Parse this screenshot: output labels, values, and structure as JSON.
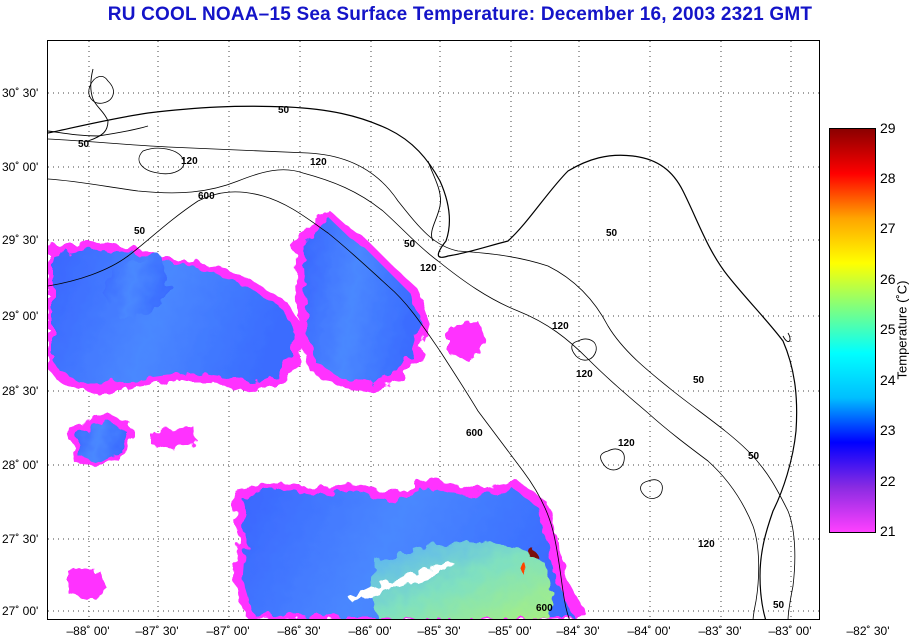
{
  "title": "RU COOL  NOAA–15  Sea Surface Temperature:  December 16, 2003 2321 GMT",
  "latitude_labels": [
    "30˚ 30'",
    "30˚ 00'",
    "29˚ 30'",
    "29˚ 00'",
    "28˚ 30'",
    "28˚ 00'",
    "27˚ 30'",
    "27˚ 00'"
  ],
  "longitude_labels": [
    "–88˚ 00'",
    "–87˚ 30'",
    "–87˚ 00'",
    "–86˚ 30'",
    "–86˚ 00'",
    "–85˚ 30'",
    "–85˚ 00'",
    "–84˚ 30'",
    "–84˚ 00'",
    "–83˚ 30'",
    "–83˚ 00'",
    "–82˚ 30'"
  ],
  "colorbar": {
    "title": "Temperature (˚C)",
    "ticks": [
      "29",
      "28",
      "27",
      "26",
      "25",
      "24",
      "23",
      "22",
      "21"
    ],
    "min": 21,
    "max": 29,
    "colors": [
      "#ff40ff",
      "#8a2be2",
      "#0000ff",
      "#00bfff",
      "#00ffff",
      "#7fff7f",
      "#ffff00",
      "#ffa500",
      "#ff0000",
      "#8b0000"
    ]
  },
  "contour_labels": [
    {
      "text": "50"
    },
    {
      "text": "50"
    },
    {
      "text": "120"
    },
    {
      "text": "120"
    },
    {
      "text": "600"
    },
    {
      "text": "50"
    },
    {
      "text": "50"
    },
    {
      "text": "120"
    },
    {
      "text": "50"
    },
    {
      "text": "120"
    },
    {
      "text": "120"
    },
    {
      "text": "600"
    },
    {
      "text": "120"
    },
    {
      "text": "50"
    },
    {
      "text": "50"
    },
    {
      "text": "120"
    },
    {
      "text": "600"
    },
    {
      "text": "50"
    }
  ]
}
